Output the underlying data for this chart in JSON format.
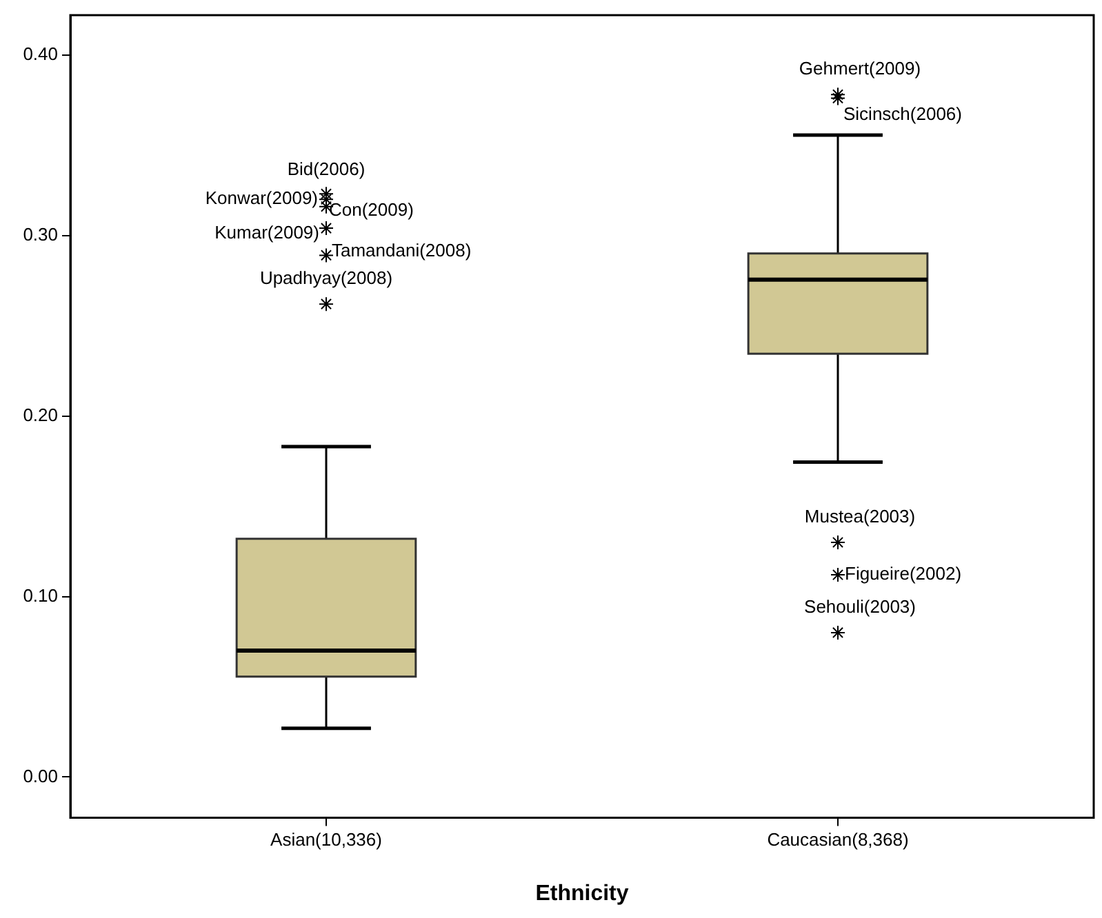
{
  "chart_data": {
    "type": "box",
    "xlabel": "Ethnicity",
    "categories": [
      "Asian(10,336)",
      "Caucasian(8,368)"
    ],
    "color": "#d1c894",
    "grid": false,
    "legend": false,
    "marker": "star",
    "boxes": [
      {
        "low": 0.027,
        "q1": 0.0556,
        "median": 0.07,
        "q3": 0.132,
        "high": 0.183,
        "outliers": [
          0.323,
          0.32,
          0.316,
          0.304,
          0.289,
          0.262
        ]
      },
      {
        "low": 0.1744,
        "q1": 0.2345,
        "median": 0.2755,
        "q3": 0.29,
        "high": 0.3556,
        "outliers": [
          0.378,
          0.376,
          0.13,
          0.112,
          0.08
        ]
      }
    ],
    "ylim": [
      -0.0225,
      0.422
    ],
    "yticks": [
      {
        "value": 0,
        "label": "0.00"
      },
      {
        "value": 0.1,
        "label": "0.10"
      },
      {
        "value": 0.2,
        "label": "0.20"
      },
      {
        "value": 0.3,
        "label": "0.30"
      },
      {
        "value": 0.4,
        "label": "0.40"
      }
    ],
    "annotations": [
      "Bid(2006)",
      "Konwar(2009)",
      "Con(2009)",
      "Kumar(2009)",
      "Tamandani(2008)",
      "Upadhyay(2008)",
      "Gehmert(2009)",
      "Sicinsch(2006)",
      "Mustea(2003)",
      "Figueire(2002)",
      "Sehouli(2003)"
    ]
  }
}
